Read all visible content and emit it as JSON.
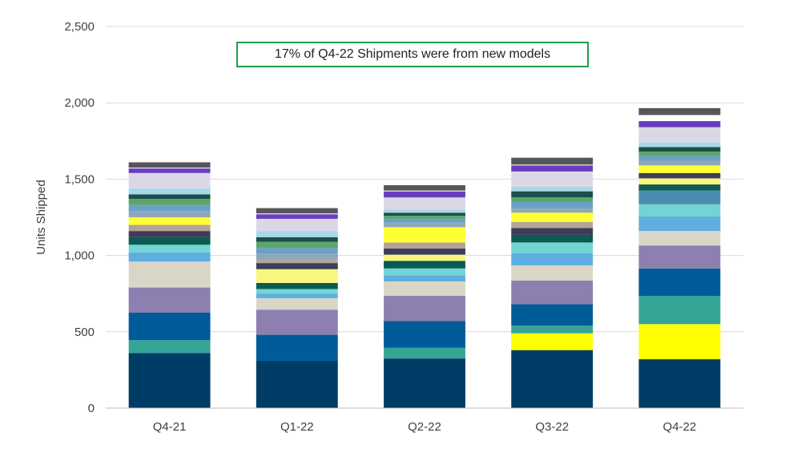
{
  "chart_data": {
    "type": "bar",
    "stacked": true,
    "categories": [
      "Q4-21",
      "Q1-22",
      "Q2-22",
      "Q3-22",
      "Q4-22"
    ],
    "ylabel": "Units Shipped",
    "ylim": [
      0,
      2500
    ],
    "yticks": [
      0,
      500,
      1000,
      1500,
      2000,
      2500
    ],
    "ytick_labels": [
      "0",
      "500",
      "1,000",
      "1,500",
      "2,000",
      "2,500"
    ],
    "grid": true,
    "annotation": "17% of Q4-22 Shipments were from new models",
    "segments": [
      {
        "color": "#003d66",
        "values": [
          360,
          310,
          325,
          380,
          320
        ]
      },
      {
        "color": "#ffff00",
        "values": [
          0,
          0,
          0,
          110,
          230
        ]
      },
      {
        "color": "#35a596",
        "values": [
          85,
          0,
          70,
          50,
          185
        ]
      },
      {
        "color": "#005b99",
        "values": [
          180,
          170,
          175,
          140,
          180
        ]
      },
      {
        "color": "#8d7fb0",
        "values": [
          165,
          165,
          165,
          155,
          150
        ]
      },
      {
        "color": "#d9d6c8",
        "values": [
          170,
          75,
          95,
          100,
          95
        ]
      },
      {
        "color": "#5eaee0",
        "values": [
          60,
          30,
          40,
          80,
          95
        ]
      },
      {
        "color": "#72d4d4",
        "values": [
          50,
          30,
          45,
          70,
          80
        ]
      },
      {
        "color": "#4a8db0",
        "values": [
          0,
          0,
          0,
          0,
          90
        ]
      },
      {
        "color": "#0a5c52",
        "values": [
          50,
          40,
          50,
          50,
          40
        ]
      },
      {
        "color": "#f7f780",
        "values": [
          0,
          90,
          40,
          0,
          40
        ]
      },
      {
        "color": "#3d3d55",
        "values": [
          40,
          40,
          40,
          45,
          35
        ]
      },
      {
        "color": "#b3a398",
        "values": [
          40,
          20,
          40,
          40,
          0
        ]
      },
      {
        "color": "#ffff33",
        "values": [
          50,
          0,
          100,
          60,
          50
        ]
      },
      {
        "color": "#8fa8b8",
        "values": [
          40,
          40,
          30,
          30,
          30
        ]
      },
      {
        "color": "#6aa1c8",
        "values": [
          40,
          40,
          25,
          40,
          30
        ]
      },
      {
        "color": "#5aa66b",
        "values": [
          40,
          40,
          20,
          30,
          30
        ]
      },
      {
        "color": "#1e4d4d",
        "values": [
          30,
          30,
          20,
          40,
          30
        ]
      },
      {
        "color": "#a6d8e8",
        "values": [
          40,
          40,
          20,
          30,
          30
        ]
      },
      {
        "color": "#dad8e6",
        "values": [
          100,
          80,
          80,
          100,
          100
        ]
      },
      {
        "color": "#6a3dbf",
        "values": [
          30,
          30,
          40,
          40,
          40
        ]
      },
      {
        "color": "#ffffff",
        "values": [
          5,
          5,
          5,
          5,
          40
        ]
      },
      {
        "color": "#55555a",
        "values": [
          35,
          35,
          35,
          45,
          45
        ]
      }
    ]
  }
}
